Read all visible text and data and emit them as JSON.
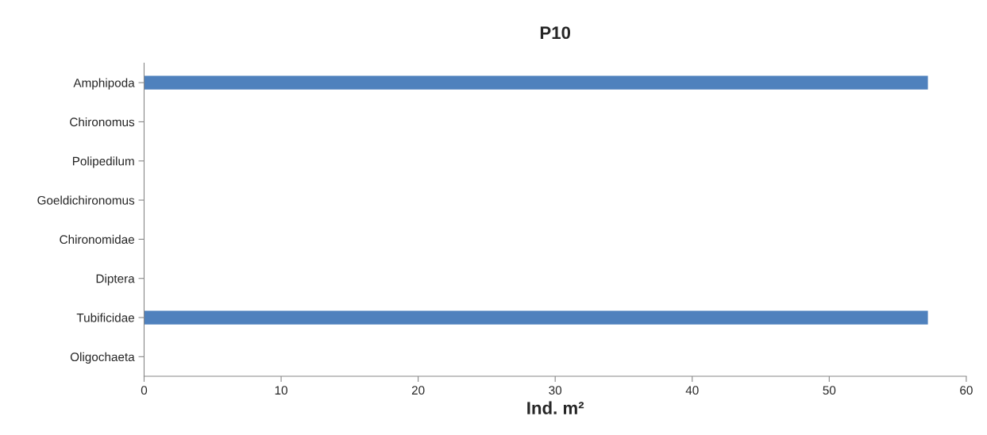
{
  "chart_data": {
    "type": "bar",
    "orientation": "horizontal",
    "title": "P10",
    "xlabel": "Ind. m²",
    "categories": [
      "Amphipoda",
      "Chironomus",
      "Polipedilum",
      "Goeldichironomus",
      "Chironomidae",
      "Diptera",
      "Tubificidae",
      "Oligochaeta"
    ],
    "values": [
      57.2,
      0,
      0,
      0,
      0,
      0,
      57.2,
      0
    ],
    "color": "#4f81bd",
    "xlim": [
      0,
      60
    ],
    "xticks": [
      0,
      10,
      20,
      30,
      40,
      50,
      60
    ],
    "grid": false,
    "legend": false
  }
}
